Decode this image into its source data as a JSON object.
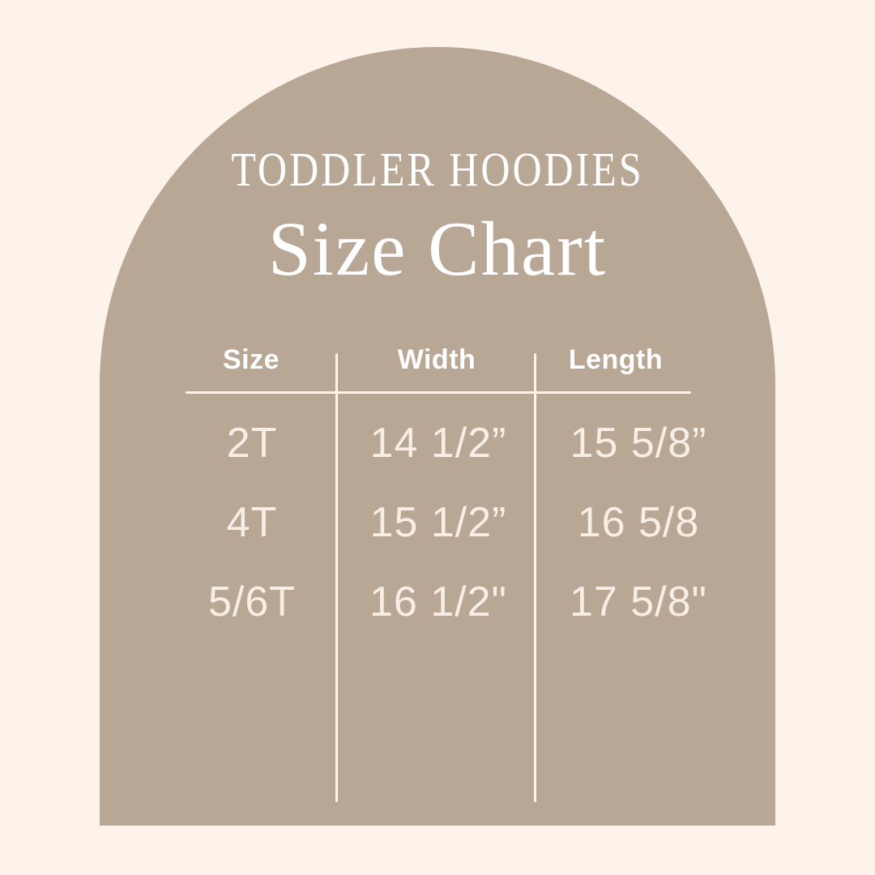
{
  "colors": {
    "bg": "#FDF3EB",
    "arch": "#B9A796",
    "heading": "#FFFFFF",
    "cellText": "#F7EFE6",
    "line": "#FBF5EE"
  },
  "header": {
    "eyebrow": "TODDLER HOODIES",
    "title": "Size Chart"
  },
  "chart_data": {
    "type": "table",
    "eyebrow": "TODDLER HOODIES",
    "title": "Size Chart",
    "columns": [
      "Size",
      "Width",
      "Length"
    ],
    "rows": [
      [
        "2T",
        "14 1/2”",
        "15 5/8”"
      ],
      [
        "4T",
        "15 1/2”",
        "16 5/8"
      ],
      [
        "5/6T",
        "16 1/2\"",
        "17 5/8\""
      ]
    ],
    "numeric": {
      "sizes": [
        "2T",
        "4T",
        "5/6T"
      ],
      "width_inches": [
        14.5,
        15.5,
        16.5
      ],
      "length_inches": [
        15.625,
        16.625,
        17.625
      ]
    }
  }
}
